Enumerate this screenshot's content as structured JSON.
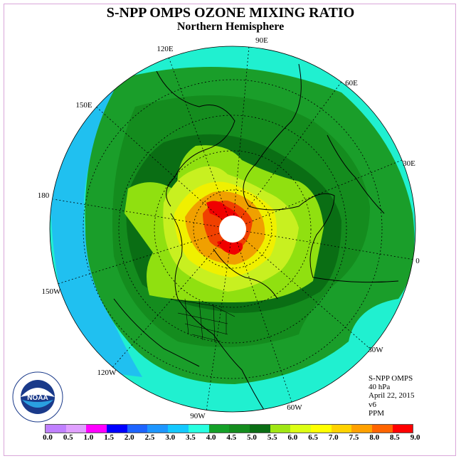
{
  "title": "S-NPP OMPS OZONE MIXING RATIO",
  "subtitle": "Northern Hemisphere",
  "longitude_labels": {
    "lon_90e": "90E",
    "lon_60e": "60E",
    "lon_30e": "30E",
    "lon_0": "0",
    "lon_30w": "30W",
    "lon_60w": "60W",
    "lon_90w": "90W",
    "lon_120w": "120W",
    "lon_150w": "150W",
    "lon_180": "180",
    "lon_150e": "150E",
    "lon_120e": "120E"
  },
  "info": {
    "instrument": "S-NPP OMPS",
    "level": "40 hPa",
    "date": "April 22, 2015",
    "version": "v6",
    "units": "PPM"
  },
  "logo_text": "NOAA",
  "colorbar": {
    "ticks": [
      "0.0",
      "0.5",
      "1.0",
      "1.5",
      "2.0",
      "2.5",
      "3.0",
      "3.5",
      "4.0",
      "4.5",
      "5.0",
      "5.5",
      "6.0",
      "6.5",
      "7.0",
      "7.5",
      "8.0",
      "8.5",
      "9.0"
    ],
    "colors": [
      "#c080ff",
      "#e0a0ff",
      "#ff00ff",
      "#0000ff",
      "#1e64ff",
      "#1e96ff",
      "#14c8ff",
      "#28ffe0",
      "#14a028",
      "#148c1e",
      "#0a6e14",
      "#a0e614",
      "#dcff14",
      "#ffff00",
      "#ffd200",
      "#ffa000",
      "#ff6400",
      "#ff0000",
      "#a0522d"
    ]
  },
  "field_colors": {
    "bg_cyan": "#20f0d0",
    "blue": "#20c0f0",
    "green_light": "#1a9e2a",
    "green_mid": "#148c1e",
    "green_dark": "#0a6e14",
    "lime": "#90e010",
    "yellow_green": "#c8f020",
    "yellow": "#f0f000",
    "orange": "#f0a000",
    "red": "#f00000"
  }
}
